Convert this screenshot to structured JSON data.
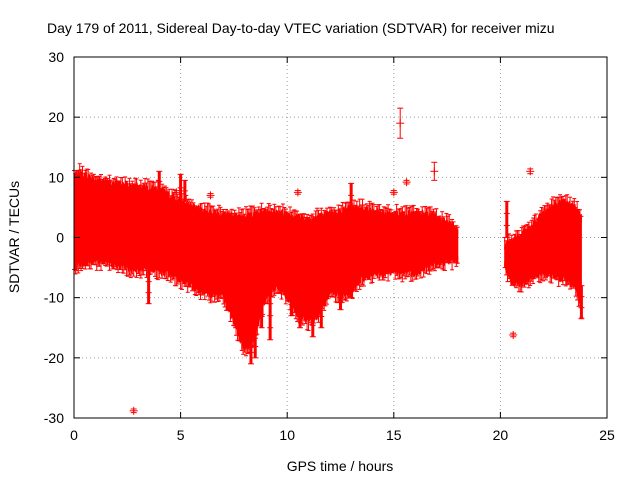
{
  "chart_data": {
    "type": "scatter",
    "title": "Day 179 of 2011, Sidereal Day-to-day VTEC variation (SDTVAR) for receiver mizu",
    "xlabel": "GPS time / hours",
    "ylabel": "SDTVAR / TECUs",
    "xlim": [
      0,
      25
    ],
    "ylim": [
      -30,
      30
    ],
    "xticks": [
      0,
      5,
      10,
      15,
      20,
      25
    ],
    "yticks": [
      -30,
      -20,
      -10,
      0,
      10,
      20,
      30
    ],
    "grid": true,
    "color": "#ff0000",
    "marker": "plus-with-errorbars",
    "envelope": {
      "description": "dense band of red error-bar markers; upper and lower bound of the band vs hour",
      "segments": [
        {
          "x": [
            0.0,
            0.3,
            1.0,
            2.0,
            3.0,
            4.0,
            5.0,
            6.0,
            7.0,
            7.5,
            8.0,
            8.5,
            9.0,
            9.5,
            10.0,
            10.5,
            11.0,
            11.5,
            12.0,
            12.5,
            13.0,
            13.5,
            14.0,
            14.5,
            15.0,
            15.5,
            16.0,
            16.5,
            17.0,
            17.5,
            18.0
          ],
          "upper": [
            10.5,
            10.8,
            9.5,
            9.0,
            8.5,
            8.0,
            6.0,
            4.5,
            3.8,
            3.5,
            3.6,
            4.0,
            4.5,
            4.2,
            4.0,
            3.5,
            3.0,
            3.5,
            4.0,
            4.5,
            5.0,
            5.0,
            4.5,
            4.0,
            4.0,
            4.0,
            4.0,
            4.0,
            3.5,
            2.5,
            1.5
          ],
          "lower": [
            -5.0,
            -4.5,
            -4.0,
            -4.5,
            -5.5,
            -5.5,
            -7.0,
            -9.0,
            -10.0,
            -14.0,
            -19.0,
            -16.0,
            -10.0,
            -8.0,
            -10.0,
            -13.0,
            -14.0,
            -13.0,
            -9.0,
            -9.5,
            -9.0,
            -7.0,
            -6.0,
            -6.0,
            -5.5,
            -6.0,
            -6.0,
            -5.0,
            -4.5,
            -4.0,
            -4.0
          ]
        },
        {
          "x": [
            20.2,
            20.5,
            21.0,
            21.5,
            22.0,
            22.5,
            23.0,
            23.5,
            23.8
          ],
          "upper": [
            -1.0,
            -0.5,
            0.5,
            2.0,
            4.0,
            5.5,
            6.0,
            5.0,
            3.5
          ],
          "lower": [
            -5.0,
            -7.5,
            -8.0,
            -6.5,
            -6.0,
            -6.5,
            -7.0,
            -8.0,
            -12.0
          ]
        }
      ]
    },
    "spikes": [
      {
        "x": 7.6,
        "from": 2.0,
        "to": -15.0
      },
      {
        "x": 8.0,
        "from": 0.0,
        "to": -18.0
      },
      {
        "x": 8.3,
        "from": 0.0,
        "to": -21.0
      },
      {
        "x": 8.5,
        "from": -3.0,
        "to": -20.0
      },
      {
        "x": 8.8,
        "from": 0.0,
        "to": -15.0
      },
      {
        "x": 9.2,
        "from": -5.0,
        "to": -17.0
      },
      {
        "x": 10.2,
        "from": 0.0,
        "to": -13.0
      },
      {
        "x": 10.6,
        "from": 0.0,
        "to": -15.0
      },
      {
        "x": 11.2,
        "from": -5.0,
        "to": -16.5
      },
      {
        "x": 11.6,
        "from": 0.0,
        "to": -15.0
      },
      {
        "x": 12.5,
        "from": 0.0,
        "to": -12.0
      },
      {
        "x": 13.0,
        "from": 0.0,
        "to": -10.0
      },
      {
        "x": 3.5,
        "from": 0.0,
        "to": -11.0
      },
      {
        "x": 4.0,
        "from": 6.0,
        "to": 11.0
      },
      {
        "x": 5.0,
        "from": 6.0,
        "to": 10.5
      },
      {
        "x": 5.2,
        "from": 6.0,
        "to": 9.5
      },
      {
        "x": 13.0,
        "from": 5.0,
        "to": 9.0
      },
      {
        "x": 23.8,
        "from": -8.0,
        "to": -13.5
      },
      {
        "x": 20.3,
        "from": 0.0,
        "to": 6.0
      }
    ],
    "outliers": [
      {
        "x": 15.3,
        "y": 19.0,
        "err": 2.5
      },
      {
        "x": 16.9,
        "y": 11.0,
        "err": 1.5
      },
      {
        "x": 2.8,
        "y": -28.8,
        "err": 0.3
      },
      {
        "x": 20.6,
        "y": -16.2,
        "err": 0.3
      },
      {
        "x": 21.4,
        "y": 11.0,
        "err": 0.4
      },
      {
        "x": 6.4,
        "y": 7.0,
        "err": 0.3
      },
      {
        "x": 10.5,
        "y": 7.5,
        "err": 0.3
      },
      {
        "x": 15.0,
        "y": 7.5,
        "err": 0.3
      },
      {
        "x": 15.6,
        "y": 9.2,
        "err": 0.3
      },
      {
        "x": 0.7,
        "y": 9.0,
        "err": 0.3
      },
      {
        "x": 1.5,
        "y": 9.5,
        "err": 0.3
      },
      {
        "x": 4.8,
        "y": 7.5,
        "err": 0.3
      }
    ]
  }
}
